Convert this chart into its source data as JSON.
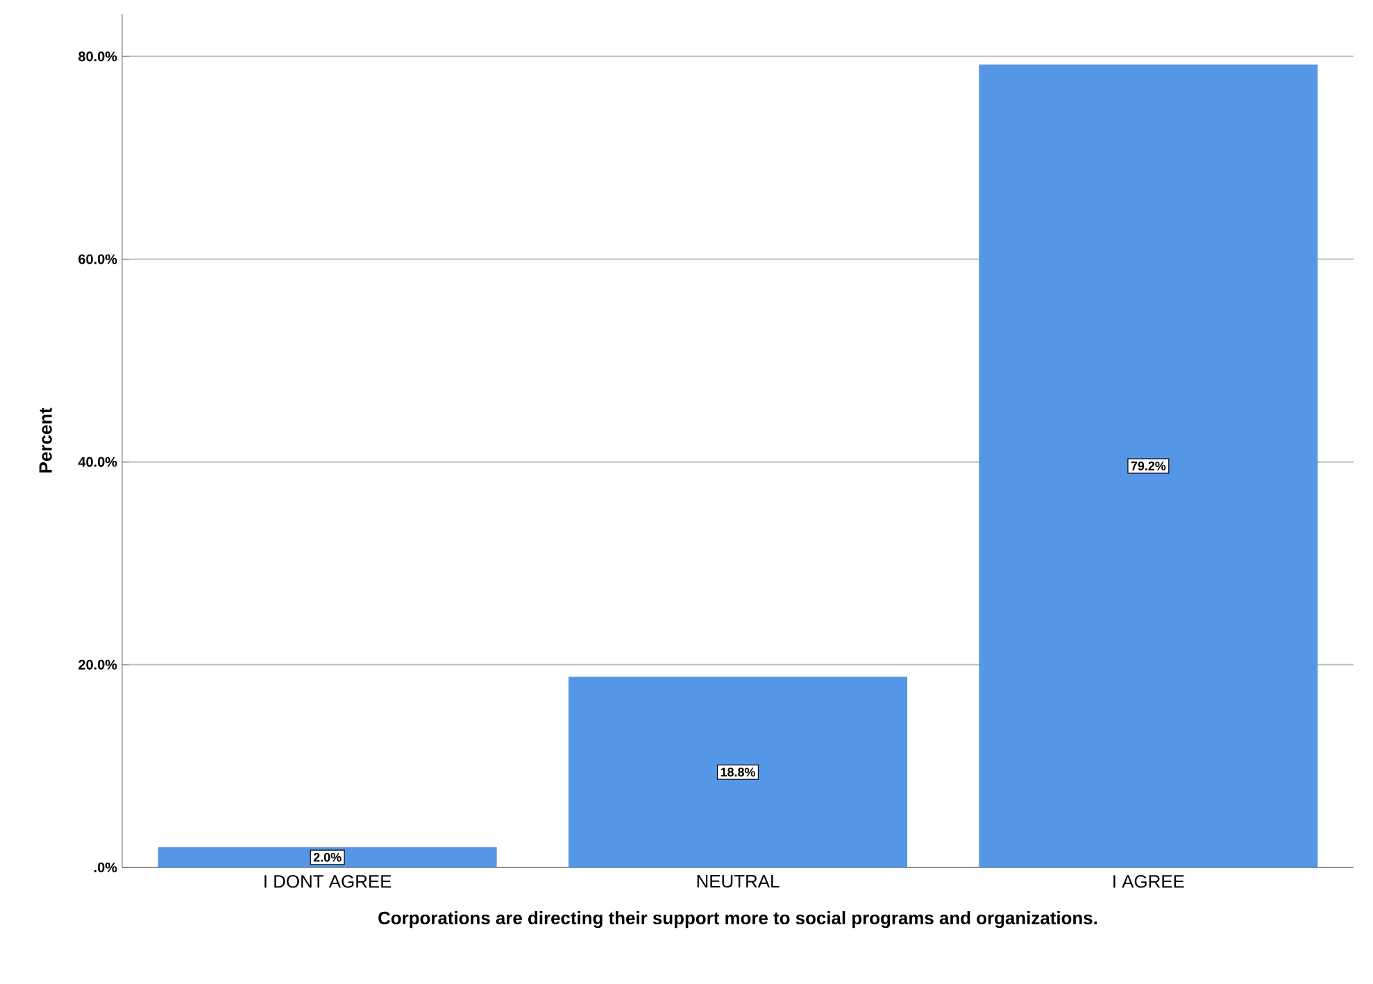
{
  "chart_data": {
    "type": "bar",
    "xlabel": "Corporations are directing their support more to social programs and organizations.",
    "ylabel": "Percent",
    "categories": [
      "I DONT AGREE",
      "NEUTRAL",
      "I AGREE"
    ],
    "values": [
      2.0,
      18.8,
      79.2
    ],
    "value_labels": [
      "2.0%",
      "18.8%",
      "79.2%"
    ],
    "color": "#5596e6",
    "ylim": [
      0,
      84.2
    ],
    "yticks": [
      {
        "value": 0,
        "label": ".0%"
      },
      {
        "value": 20,
        "label": "20.0%"
      },
      {
        "value": 40,
        "label": "40.0%"
      },
      {
        "value": 60,
        "label": "60.0%"
      },
      {
        "value": 80,
        "label": "80.0%"
      }
    ],
    "grid": "y"
  }
}
